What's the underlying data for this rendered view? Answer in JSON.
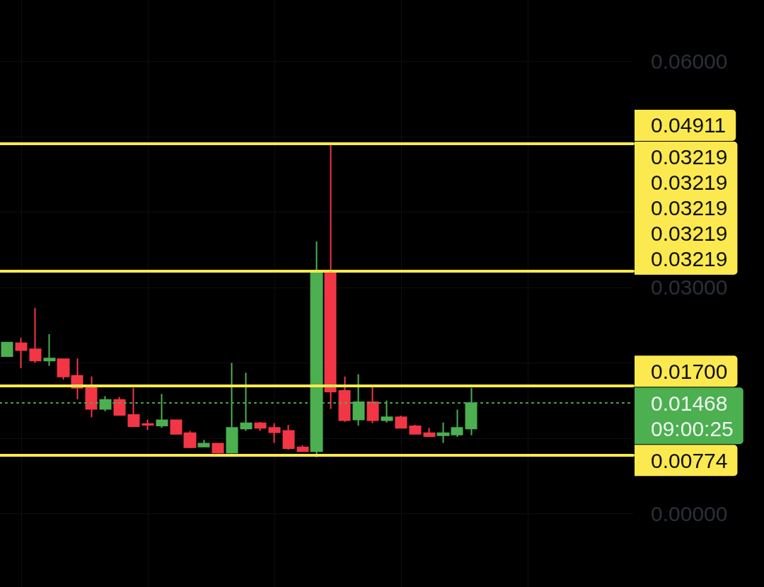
{
  "chart_data": {
    "type": "candlestick",
    "categories": [
      null,
      null,
      null,
      null,
      null,
      null,
      null,
      null,
      null,
      null,
      null,
      null,
      null,
      null,
      null,
      null,
      null,
      null,
      null,
      null,
      null,
      null,
      null,
      null,
      null,
      null,
      null,
      null,
      null,
      null,
      null,
      null,
      null,
      null,
      null,
      null,
      null,
      null,
      null,
      null,
      null,
      null,
      null,
      null,
      null
    ],
    "ohlc": [
      [
        0.0209,
        0.0227,
        0.0209,
        0.0227
      ],
      [
        0.0226,
        0.0233,
        0.0193,
        0.0217
      ],
      [
        0.0218,
        0.0273,
        0.02,
        0.0203
      ],
      [
        0.0203,
        0.0238,
        0.0196,
        0.0206
      ],
      [
        0.0205,
        0.0205,
        0.0178,
        0.0182
      ],
      [
        0.0183,
        0.0206,
        0.0152,
        0.0167
      ],
      [
        0.0167,
        0.0182,
        0.0128,
        0.0139
      ],
      [
        0.0139,
        0.0156,
        0.0136,
        0.0151
      ],
      [
        0.0151,
        0.0155,
        0.013,
        0.0131
      ],
      [
        0.0131,
        0.0167,
        0.0115,
        0.0116
      ],
      [
        0.0119,
        0.0125,
        0.0111,
        0.0118
      ],
      [
        0.0117,
        0.0159,
        0.0114,
        0.0124
      ],
      [
        0.0124,
        0.0125,
        0.0105,
        0.0106
      ],
      [
        0.0107,
        0.011,
        0.0087,
        0.0088
      ],
      [
        0.0089,
        0.0098,
        0.0089,
        0.0093
      ],
      [
        0.0093,
        0.0094,
        0.008,
        0.0081
      ],
      [
        0.0081,
        0.02,
        0.008,
        0.0114
      ],
      [
        0.0113,
        0.0187,
        0.011,
        0.012
      ],
      [
        0.012,
        0.0122,
        0.011,
        0.0114
      ],
      [
        0.0114,
        0.012,
        0.0094,
        0.0108
      ],
      [
        0.011,
        0.0118,
        0.0085,
        0.0087
      ],
      [
        0.0088,
        0.0091,
        0.0082,
        0.0083
      ],
      [
        0.0083,
        0.0361,
        0.0075,
        0.0322
      ],
      [
        0.0322,
        0.0492,
        0.0139,
        0.0162
      ],
      [
        0.0163,
        0.0182,
        0.0122,
        0.0124
      ],
      [
        0.0125,
        0.0185,
        0.0117,
        0.0148
      ],
      [
        0.0148,
        0.017,
        0.012,
        0.0124
      ],
      [
        0.0124,
        0.015,
        0.0121,
        0.0128
      ],
      [
        0.0128,
        0.013,
        0.0114,
        0.0114
      ],
      [
        0.0116,
        0.0118,
        0.0106,
        0.0106
      ],
      [
        0.0107,
        0.0114,
        0.0103,
        0.0103
      ],
      [
        0.0104,
        0.0121,
        0.0094,
        0.0107
      ],
      [
        0.0105,
        0.0138,
        0.0102,
        0.0114
      ],
      [
        0.0113,
        0.0167,
        0.0104,
        0.01468
      ],
      null,
      null,
      null,
      null,
      null,
      null,
      null,
      null,
      null,
      null,
      null
    ],
    "colors": [
      "#4caf50",
      "#f23645",
      "#f23645",
      "#4caf50",
      "#f23645",
      "#f23645",
      "#f23645",
      "#4caf50",
      "#f23645",
      "#f23645",
      "#f23645",
      "#4caf50",
      "#f23645",
      "#f23645",
      "#4caf50",
      "#f23645",
      "#4caf50",
      "#4caf50",
      "#f23645",
      "#f23645",
      "#f23645",
      "#f23645",
      "#4caf50",
      "#f23645",
      "#f23645",
      "#4caf50",
      "#f23645",
      "#4caf50",
      "#f23645",
      "#f23645",
      "#f23645",
      "#4caf50",
      "#4caf50",
      "#4caf50",
      null,
      null,
      null,
      null,
      null,
      null,
      null,
      null,
      null,
      null,
      null
    ],
    "ylim": [
      -0.0097,
      0.0681
    ],
    "yticks": [
      {
        "value": 0,
        "label": "0.00000"
      },
      {
        "value": 0.01,
        "label": null
      },
      {
        "value": 0.02,
        "label": null
      },
      {
        "value": 0.03,
        "label": "0.03000"
      },
      {
        "value": 0.04,
        "label": null
      },
      {
        "value": 0.05,
        "label": null
      },
      {
        "value": 0.06,
        "label": "0.06000"
      }
    ],
    "tick_labels": "y",
    "grid": true,
    "ref_lines": [
      {
        "axis": "y",
        "value": 0.04911,
        "label": "0.04911",
        "color": "#fce94f"
      },
      {
        "axis": "y",
        "value": 0.03219,
        "label": "0.03219\n0.03219\n0.03219\n0.03219\n0.03219",
        "color": "#fce94f"
      },
      {
        "axis": "y",
        "value": 0.017,
        "label": "0.01700",
        "color": "#fce94f"
      },
      {
        "axis": "y",
        "value": 0.01468,
        "label": "0.01468\n09:00:25",
        "color": "#4caf50",
        "line_style": "dotted"
      },
      {
        "axis": "y",
        "value": 0.00774,
        "label": "0.00774",
        "color": "#fce94f"
      }
    ]
  }
}
